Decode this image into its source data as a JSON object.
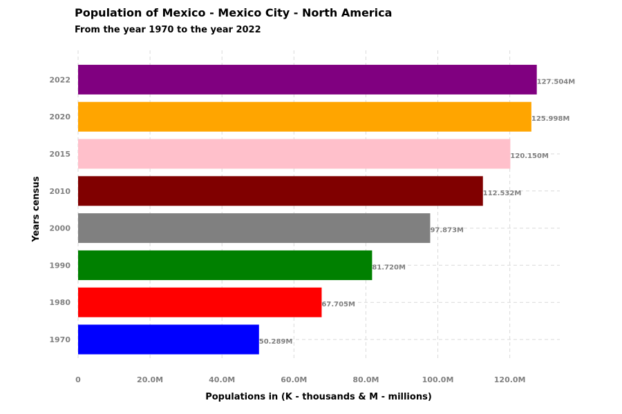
{
  "chart_data": {
    "type": "bar",
    "orientation": "horizontal",
    "title": "Population of Mexico - Mexico City - North America",
    "subtitle": "From the year 1970 to the year 2022",
    "xlabel": "Populations in (K - thousands & M - millions)",
    "ylabel": "Years census",
    "categories": [
      "1970",
      "1980",
      "1990",
      "2000",
      "2010",
      "2015",
      "2020",
      "2022"
    ],
    "values": [
      50.289,
      67.705,
      81.72,
      97.873,
      112.532,
      120.15,
      125.998,
      127.504
    ],
    "value_labels": [
      "50.289M",
      "67.705M",
      "81.720M",
      "97.873M",
      "112.532M",
      "120.150M",
      "125.998M",
      "127.504M"
    ],
    "colors": [
      "#0000ff",
      "#ff0000",
      "#008000",
      "#808080",
      "#800000",
      "#ffc0cb",
      "#ffa500",
      "#800080"
    ],
    "x_ticks": [
      0,
      20,
      40,
      60,
      80,
      100,
      120
    ],
    "x_tick_labels": [
      "0",
      "20.0M",
      "40.0M",
      "60.0M",
      "80.0M",
      "100.0M",
      "120.0M"
    ],
    "xlim": [
      0,
      133.9
    ],
    "grid": true,
    "legend": "none"
  }
}
